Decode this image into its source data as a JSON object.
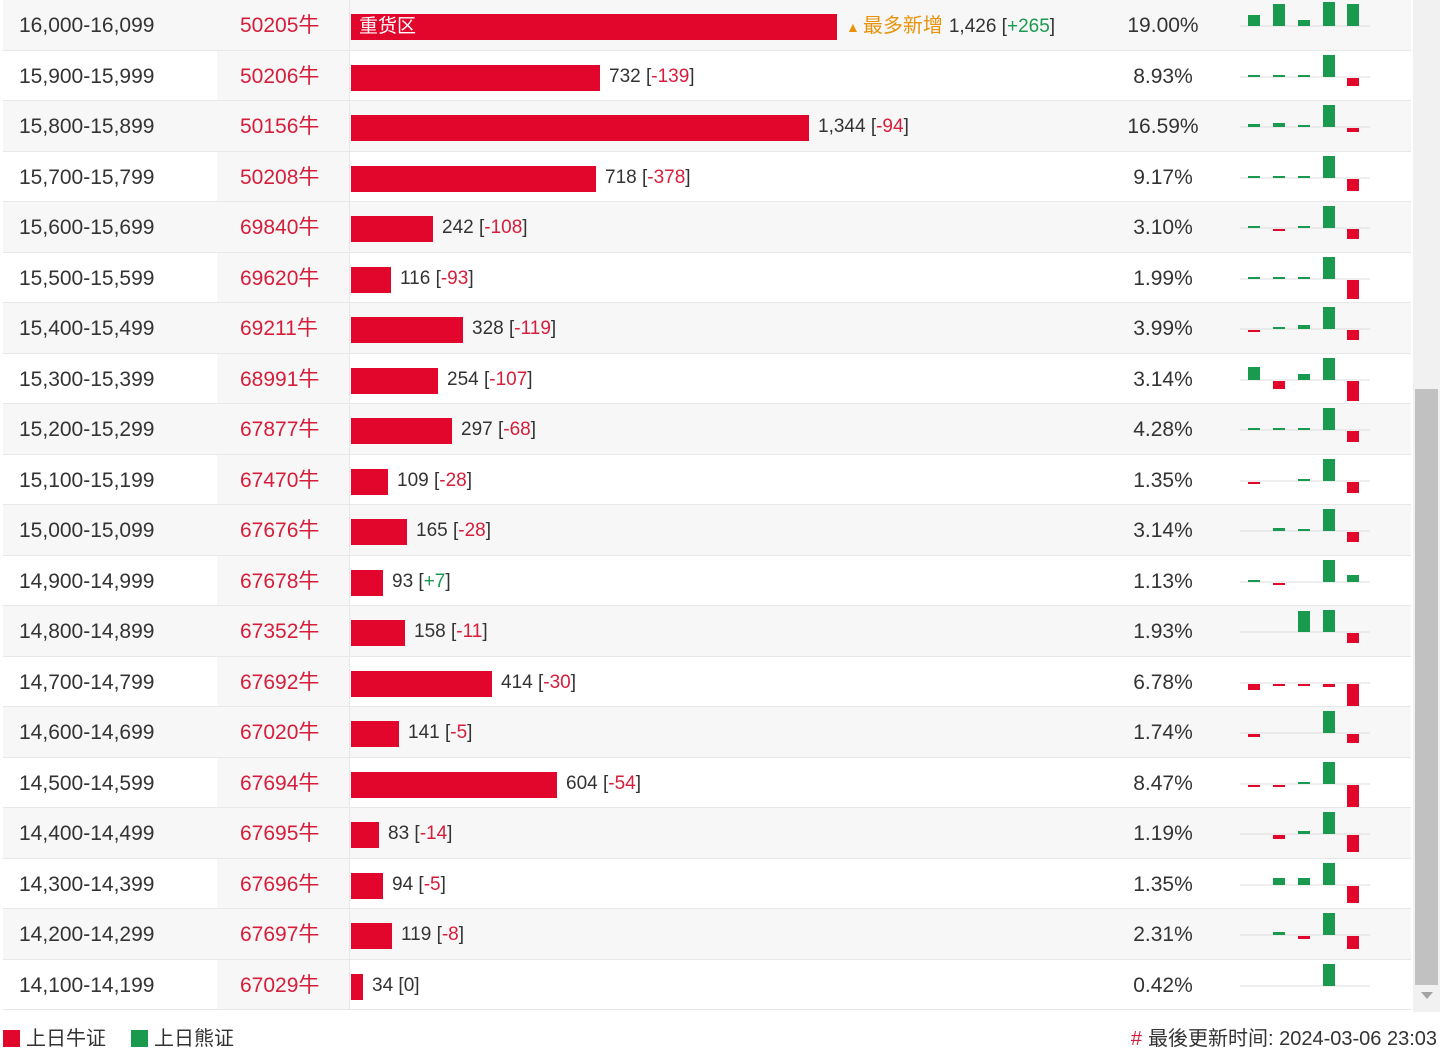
{
  "colors": {
    "bull": "#e2062c",
    "bear": "#1a9a4f",
    "code_text": "#d61d3a",
    "hot_text": "#e8930c"
  },
  "max_volume": 1426,
  "rows": [
    {
      "range": "16,000-16,099",
      "code": "50205牛",
      "volume": "1,426",
      "volume_value": 1426,
      "change": "+265",
      "change_sign": "pos",
      "percent": "19.00%",
      "bar_label": "重货区",
      "hot_label": "最多新增",
      "spark": [
        [
          0,
          0.5
        ],
        [
          0,
          1.0
        ],
        [
          0,
          0.25
        ],
        [
          0,
          1.1
        ],
        [
          0,
          1.0
        ]
      ]
    },
    {
      "range": "15,900-15,999",
      "code": "50206牛",
      "volume": "732",
      "volume_value": 732,
      "change": "-139",
      "change_sign": "neg",
      "percent": "8.93%",
      "spark": [
        [
          0,
          0.08
        ],
        [
          0,
          0.08
        ],
        [
          0,
          0.05
        ],
        [
          0,
          1.0
        ],
        [
          1,
          0.35
        ]
      ]
    },
    {
      "range": "15,800-15,899",
      "code": "50156牛",
      "volume": "1,344",
      "volume_value": 1344,
      "change": "-94",
      "change_sign": "neg",
      "percent": "16.59%",
      "spark": [
        [
          0,
          0.15
        ],
        [
          0,
          0.2
        ],
        [
          0,
          0.05
        ],
        [
          0,
          1.0
        ],
        [
          1,
          0.2
        ]
      ]
    },
    {
      "range": "15,700-15,799",
      "code": "50208牛",
      "volume": "718",
      "volume_value": 718,
      "change": "-378",
      "change_sign": "neg",
      "percent": "9.17%",
      "spark": [
        [
          0,
          0.04
        ],
        [
          0,
          0.04
        ],
        [
          0,
          0.04
        ],
        [
          0,
          1.0
        ],
        [
          1,
          0.55
        ]
      ]
    },
    {
      "range": "15,600-15,699",
      "code": "69840牛",
      "volume": "242",
      "volume_value": 242,
      "change": "-108",
      "change_sign": "neg",
      "percent": "3.10%",
      "spark": [
        [
          0,
          0.08
        ],
        [
          1,
          0.08
        ],
        [
          0,
          0.08
        ],
        [
          0,
          1.0
        ],
        [
          1,
          0.45
        ]
      ]
    },
    {
      "range": "15,500-15,599",
      "code": "69620牛",
      "volume": "116",
      "volume_value": 116,
      "change": "-93",
      "change_sign": "neg",
      "percent": "1.99%",
      "spark": [
        [
          0,
          0.04
        ],
        [
          0,
          0.04
        ],
        [
          0,
          0.04
        ],
        [
          0,
          1.0
        ],
        [
          1,
          0.85
        ]
      ]
    },
    {
      "range": "15,400-15,499",
      "code": "69211牛",
      "volume": "328",
      "volume_value": 328,
      "change": "-119",
      "change_sign": "neg",
      "percent": "3.99%",
      "spark": [
        [
          1,
          0.08
        ],
        [
          0,
          0.04
        ],
        [
          0,
          0.2
        ],
        [
          0,
          1.0
        ],
        [
          1,
          0.45
        ]
      ]
    },
    {
      "range": "15,300-15,399",
      "code": "68991牛",
      "volume": "254",
      "volume_value": 254,
      "change": "-107",
      "change_sign": "neg",
      "percent": "3.14%",
      "spark": [
        [
          0,
          0.6
        ],
        [
          1,
          0.35
        ],
        [
          0,
          0.25
        ],
        [
          0,
          1.0
        ],
        [
          1,
          0.9
        ]
      ]
    },
    {
      "range": "15,200-15,299",
      "code": "67877牛",
      "volume": "297",
      "volume_value": 297,
      "change": "-68",
      "change_sign": "neg",
      "percent": "4.28%",
      "spark": [
        [
          0,
          0.08
        ],
        [
          0,
          0.06
        ],
        [
          0,
          0.1
        ],
        [
          0,
          1.0
        ],
        [
          1,
          0.5
        ]
      ]
    },
    {
      "range": "15,100-15,199",
      "code": "67470牛",
      "volume": "109",
      "volume_value": 109,
      "change": "-28",
      "change_sign": "neg",
      "percent": "1.35%",
      "spark": [
        [
          1,
          0.06
        ],
        [
          0,
          0
        ],
        [
          0,
          0.03
        ],
        [
          0,
          1.0
        ],
        [
          1,
          0.5
        ]
      ]
    },
    {
      "range": "15,000-15,099",
      "code": "67676牛",
      "volume": "165",
      "volume_value": 165,
      "change": "-28",
      "change_sign": "neg",
      "percent": "3.14%",
      "spark": [
        [
          0,
          0
        ],
        [
          0,
          0.15
        ],
        [
          0,
          0.08
        ],
        [
          0,
          1.0
        ],
        [
          1,
          0.45
        ]
      ]
    },
    {
      "range": "14,900-14,999",
      "code": "67678牛",
      "volume": "93",
      "volume_value": 93,
      "change": "+7",
      "change_sign": "pos",
      "percent": "1.13%",
      "spark": [
        [
          0,
          0.08
        ],
        [
          1,
          0.06
        ],
        [
          0,
          0
        ],
        [
          0,
          1.0
        ],
        [
          0,
          0.3
        ]
      ]
    },
    {
      "range": "14,800-14,899",
      "code": "67352牛",
      "volume": "158",
      "volume_value": 158,
      "change": "-11",
      "change_sign": "neg",
      "percent": "1.93%",
      "spark": [
        [
          0,
          0
        ],
        [
          0,
          0
        ],
        [
          0,
          0.95
        ],
        [
          0,
          1.0
        ],
        [
          1,
          0.45
        ]
      ]
    },
    {
      "range": "14,700-14,799",
      "code": "67692牛",
      "volume": "414",
      "volume_value": 414,
      "change": "-30",
      "change_sign": "neg",
      "percent": "6.78%",
      "spark": [
        [
          1,
          0.25
        ],
        [
          1,
          0.1
        ],
        [
          1,
          0.1
        ],
        [
          1,
          0.15
        ],
        [
          1,
          1.0
        ]
      ]
    },
    {
      "range": "14,600-14,699",
      "code": "67020牛",
      "volume": "141",
      "volume_value": 141,
      "change": "-5",
      "change_sign": "neg",
      "percent": "1.74%",
      "spark": [
        [
          1,
          0.15
        ],
        [
          0,
          0
        ],
        [
          0,
          0
        ],
        [
          0,
          1.0
        ],
        [
          1,
          0.4
        ]
      ]
    },
    {
      "range": "14,500-14,599",
      "code": "67694牛",
      "volume": "604",
      "volume_value": 604,
      "change": "-54",
      "change_sign": "neg",
      "percent": "8.47%",
      "spark": [
        [
          1,
          0.08
        ],
        [
          1,
          0.1
        ],
        [
          0,
          0.08
        ],
        [
          0,
          1.0
        ],
        [
          1,
          1.0
        ]
      ]
    },
    {
      "range": "14,400-14,499",
      "code": "67695牛",
      "volume": "83",
      "volume_value": 83,
      "change": "-14",
      "change_sign": "neg",
      "percent": "1.19%",
      "spark": [
        [
          0,
          0
        ],
        [
          1,
          0.2
        ],
        [
          0,
          0.15
        ],
        [
          0,
          1.0
        ],
        [
          1,
          0.75
        ]
      ]
    },
    {
      "range": "14,300-14,399",
      "code": "67696牛",
      "volume": "94",
      "volume_value": 94,
      "change": "-5",
      "change_sign": "neg",
      "percent": "1.35%",
      "spark": [
        [
          0,
          0
        ],
        [
          0,
          0.3
        ],
        [
          0,
          0.3
        ],
        [
          0,
          1.0
        ],
        [
          1,
          0.75
        ]
      ]
    },
    {
      "range": "14,200-14,299",
      "code": "67697牛",
      "volume": "119",
      "volume_value": 119,
      "change": "-8",
      "change_sign": "neg",
      "percent": "2.31%",
      "spark": [
        [
          0,
          0
        ],
        [
          0,
          0.15
        ],
        [
          1,
          0.15
        ],
        [
          0,
          1.0
        ],
        [
          1,
          0.6
        ]
      ]
    },
    {
      "range": "14,100-14,199",
      "code": "67029牛",
      "volume": "34",
      "volume_value": 34,
      "change": "0",
      "change_sign": "zero",
      "percent": "0.42%",
      "spark": [
        [
          0,
          0
        ],
        [
          0,
          0
        ],
        [
          0,
          0
        ],
        [
          0,
          1.0
        ],
        [
          0,
          0
        ]
      ]
    }
  ],
  "footer": {
    "legend_bull": "上日牛证",
    "legend_bear": "上日熊证",
    "update_label": "最後更新时间: 2024-03-06 23:03",
    "hash": "#"
  }
}
